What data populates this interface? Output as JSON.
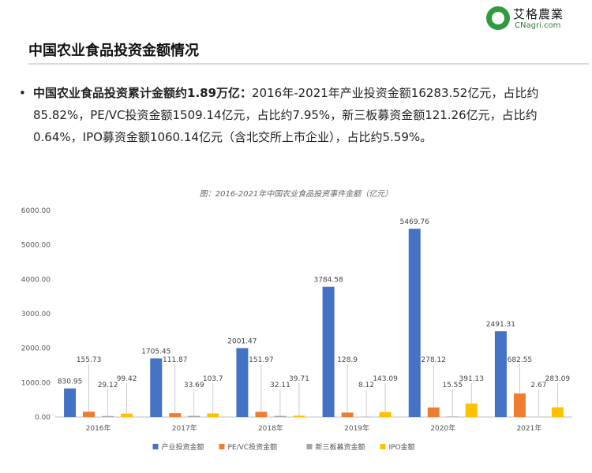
{
  "logo": {
    "name_cn": "艾格農業",
    "domain": "CNagri.com"
  },
  "page_title": "中国农业食品投资金额情况",
  "bullet": {
    "bold": "中国农业食品投资累计金额约1.89万亿：",
    "text": "2016年-2021年产业投资金额16283.52亿元，占比约85.82%，PE/VC投资金额1509.14亿元，占比约7.95%，新三板募资金额121.26亿元，占比约0.64%，IPO募资金额1060.14亿元（含北交所上市企业），占比约5.59%。"
  },
  "chart_data": {
    "type": "bar",
    "title": "图：2016-2021年中国农业食品投资事件金额（亿元）",
    "categories": [
      "2016年",
      "2017年",
      "2018年",
      "2019年",
      "2020年",
      "2021年"
    ],
    "y_ticks": [
      "0.00",
      "1000.00",
      "2000.00",
      "3000.00",
      "4000.00",
      "5000.00",
      "6000.00"
    ],
    "ylim": [
      0,
      6000
    ],
    "legend_position": "bottom",
    "grid": false,
    "series": [
      {
        "name": "产业投资金额",
        "color": "#4472c4",
        "values": [
          830.95,
          1705.45,
          2001.47,
          3784.58,
          5469.76,
          2491.31
        ],
        "labels": [
          "830.95",
          "1705.45",
          "2001.47",
          "3784.58",
          "5469.76",
          "2491.31"
        ]
      },
      {
        "name": "PE/VC投资金额",
        "color": "#ed7d31",
        "values": [
          155.73,
          111.87,
          151.97,
          128.9,
          278.12,
          682.55
        ],
        "labels": [
          "155.73",
          "111.87",
          "151.97",
          "128.9",
          "278.12",
          "682.55"
        ]
      },
      {
        "name": "新三板募资金额",
        "color": "#a5a5a5",
        "values": [
          29.12,
          33.69,
          32.11,
          8.12,
          15.55,
          2.67
        ],
        "labels": [
          "29.12",
          "33.69",
          "32.11",
          "8.12",
          "15.55",
          "2.67"
        ]
      },
      {
        "name": "IPO金额",
        "color": "#ffc000",
        "values": [
          99.42,
          103.7,
          39.71,
          143.09,
          391.13,
          283.09
        ],
        "labels": [
          "99.42",
          "103.7",
          "39.71",
          "143.09",
          "391.13",
          "283.09"
        ]
      }
    ]
  }
}
